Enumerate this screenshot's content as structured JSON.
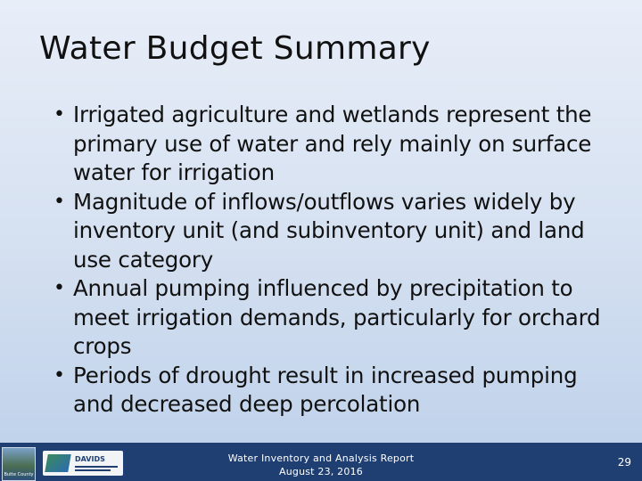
{
  "slide": {
    "title": "Water Budget Summary",
    "bullets": [
      "Irrigated agriculture and wetlands represent the primary use of water and rely mainly on surface water for irrigation",
      "Magnitude of inflows/outflows varies widely by inventory unit (and subinventory unit) and land use category",
      "Annual pumping influenced by precipitation to meet irrigation demands, particularly for orchard crops",
      "Periods of drought result in increased pumping and decreased deep percolation"
    ],
    "bullet_symbol": "•"
  },
  "footer": {
    "report_name": "Water Inventory and Analysis Report",
    "date": "August 23, 2016",
    "page_number": "29",
    "logo_left_label": "Butte County",
    "logo_right_label": "DAVIDS",
    "background_color": "#1f3f73"
  }
}
